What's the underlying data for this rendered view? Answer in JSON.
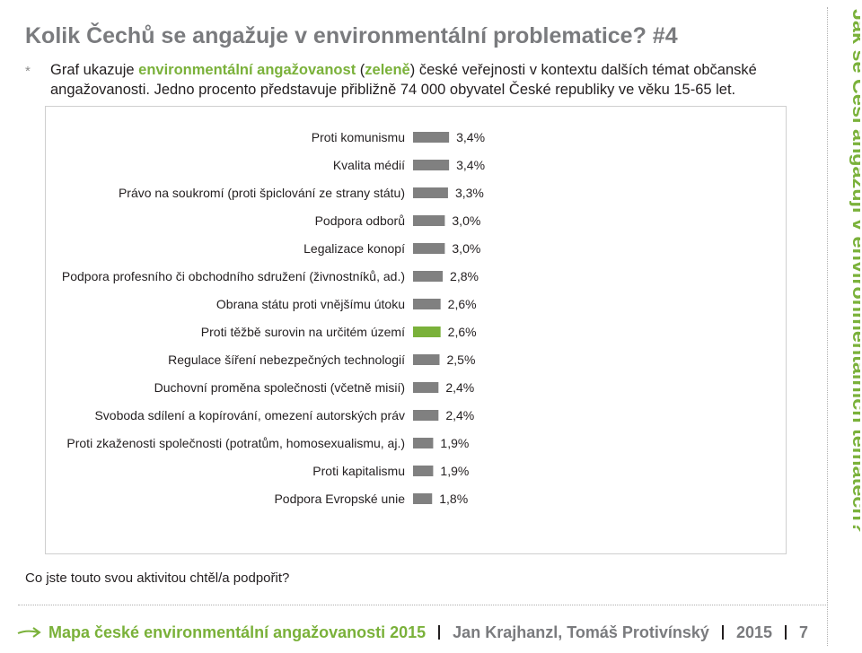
{
  "header": {
    "title": "Kolik Čechů se angažuje v environmentální problematice? #4",
    "bullet": "*",
    "intro_pre": "Graf ukazuje ",
    "intro_green": "environmentální angažovanost",
    "intro_mid": " (",
    "intro_green2": "zeleně",
    "intro_post": ") české veřejnosti v kontextu dalších témat občanské angažovanosti. Jedno procento představuje přibližně 74 000 obyvatel České republiky ve věku 15-65 let."
  },
  "chart_data": {
    "type": "bar",
    "orientation": "horizontal",
    "value_format": "percent",
    "categories": [
      "Proti komunismu",
      "Kvalita médií",
      "Právo na soukromí (proti špiclování ze strany státu)",
      "Podpora odborů",
      "Legalizace konopí",
      "Podpora profesního či obchodního sdružení (živnostníků, ad.)",
      "Obrana státu proti vnějšímu útoku",
      "Proti těžbě surovin na určitém území",
      "Regulace šíření nebezpečných technologií",
      "Duchovní proměna společnosti (včetně misií)",
      "Svoboda sdílení a kopírování, omezení autorských práv",
      "Proti zkaženosti společnosti (potratům, homosexualismu, aj.)",
      "Proti kapitalismu",
      "Podpora Evropské unie"
    ],
    "values": [
      3.4,
      3.4,
      3.3,
      3.0,
      3.0,
      2.8,
      2.6,
      2.6,
      2.5,
      2.4,
      2.4,
      1.9,
      1.9,
      1.8
    ],
    "labels": [
      "3,4%",
      "3,4%",
      "3,3%",
      "3,0%",
      "3,0%",
      "2,8%",
      "2,6%",
      "2,6%",
      "2,5%",
      "2,4%",
      "2,4%",
      "1,9%",
      "1,9%",
      "1,8%"
    ],
    "highlighted": [
      false,
      false,
      false,
      false,
      false,
      false,
      false,
      true,
      false,
      false,
      false,
      false,
      false,
      false
    ],
    "colors": {
      "default": "#808080",
      "highlight": "#7ab13a"
    }
  },
  "question": "Co jste touto svou aktivitou chtěl/a podpořit?",
  "side_title": "Jak se Češi angažují v environmentálních tématech?",
  "footer": {
    "publication": "Mapa české environmentální angažovanosti 2015",
    "authors": "Jan Krajhanzl, Tomáš Protivínský",
    "year": "2015",
    "page": "7",
    "arrow_color": "#7ab13a"
  }
}
